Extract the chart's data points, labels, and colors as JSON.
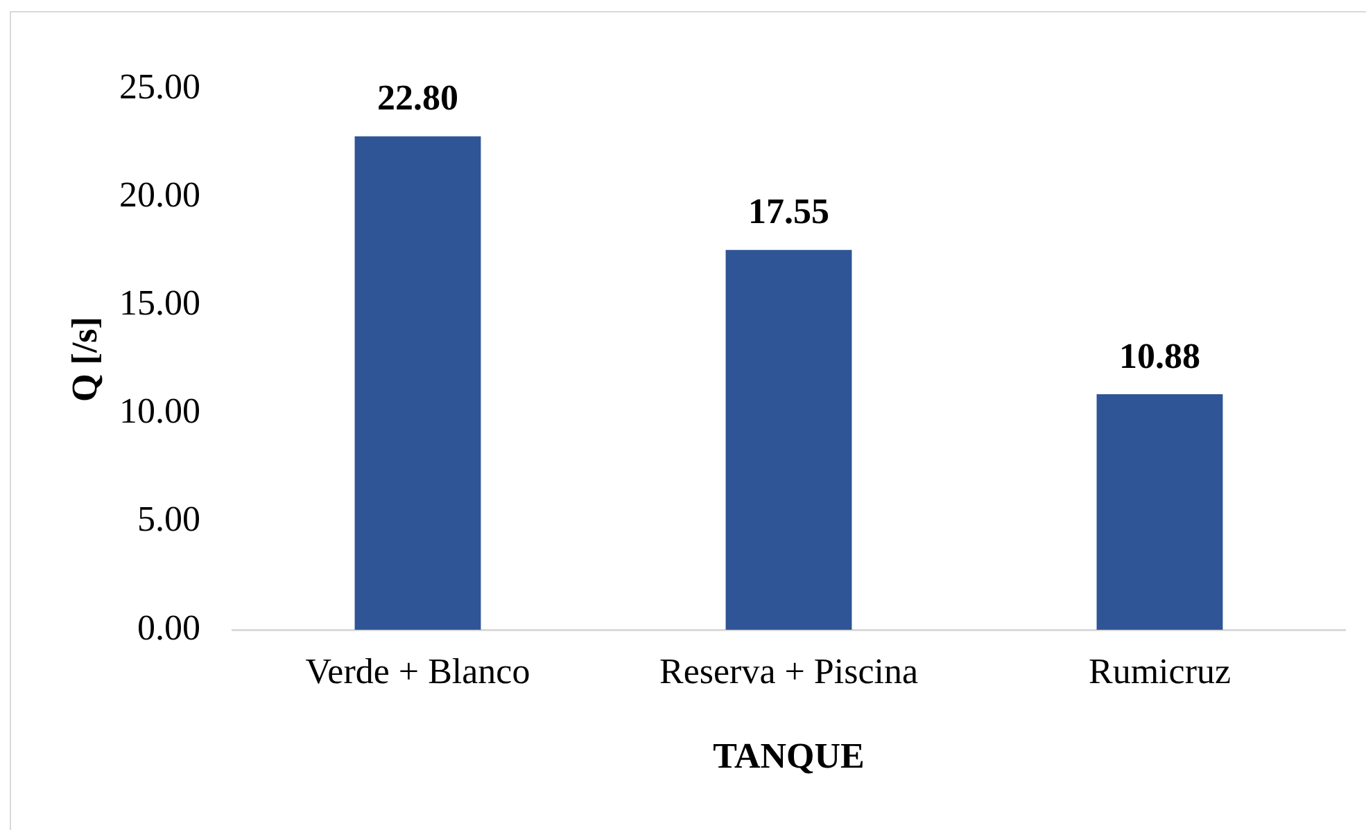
{
  "chart_data": {
    "type": "bar",
    "xlabel": "TANQUE",
    "ylabel": "Q [/s]",
    "categories": [
      "Verde + Blanco",
      "Reserva + Piscina",
      "Rumicruz"
    ],
    "values": [
      22.8,
      17.55,
      10.88
    ],
    "color": "#2f5597",
    "value_labels": [
      "22.80",
      "17.55",
      "10.88"
    ],
    "ylim": [
      0,
      25
    ],
    "yticks": [
      {
        "value": 0,
        "label": "0.00"
      },
      {
        "value": 5,
        "label": "5.00"
      },
      {
        "value": 10,
        "label": "10.00"
      },
      {
        "value": 15,
        "label": "15.00"
      },
      {
        "value": 20,
        "label": "20.00"
      },
      {
        "value": 25,
        "label": "25.00"
      }
    ]
  }
}
